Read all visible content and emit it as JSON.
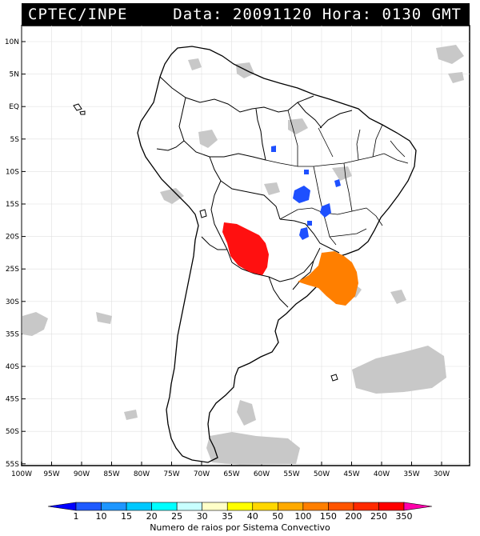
{
  "header": {
    "title_left": "CPTEC/INPE",
    "title_right": "Data: 20091120 Hora: 0130 GMT"
  },
  "map": {
    "lat_labels": [
      "10N",
      "5N",
      "EQ",
      "5S",
      "10S",
      "15S",
      "20S",
      "25S",
      "30S",
      "35S",
      "40S",
      "45S",
      "50S",
      "55S"
    ],
    "lon_labels": [
      "100W",
      "95W",
      "90W",
      "85W",
      "80W",
      "75W",
      "70W",
      "65W",
      "60W",
      "55W",
      "50W",
      "45W",
      "40W",
      "35W",
      "30W"
    ],
    "systems": [
      {
        "name": "system-red",
        "color": "#ff1010"
      },
      {
        "name": "system-orange",
        "color": "#ff7f00"
      },
      {
        "name": "system-blue",
        "color": "#1e50ff"
      }
    ]
  },
  "legend": {
    "values": [
      "1",
      "10",
      "15",
      "20",
      "25",
      "30",
      "35",
      "40",
      "50",
      "100",
      "150",
      "200",
      "250",
      "350"
    ],
    "colors": [
      "#0000ff",
      "#1e5aff",
      "#1e96ff",
      "#00c8ff",
      "#00ffff",
      "#c8ffff",
      "#ffffc8",
      "#ffff00",
      "#ffd700",
      "#ffaa00",
      "#ff7f00",
      "#ff5500",
      "#ff2a00",
      "#ff0000",
      "#ff00aa"
    ],
    "label": "Numero de raios por Sistema Convectivo"
  }
}
